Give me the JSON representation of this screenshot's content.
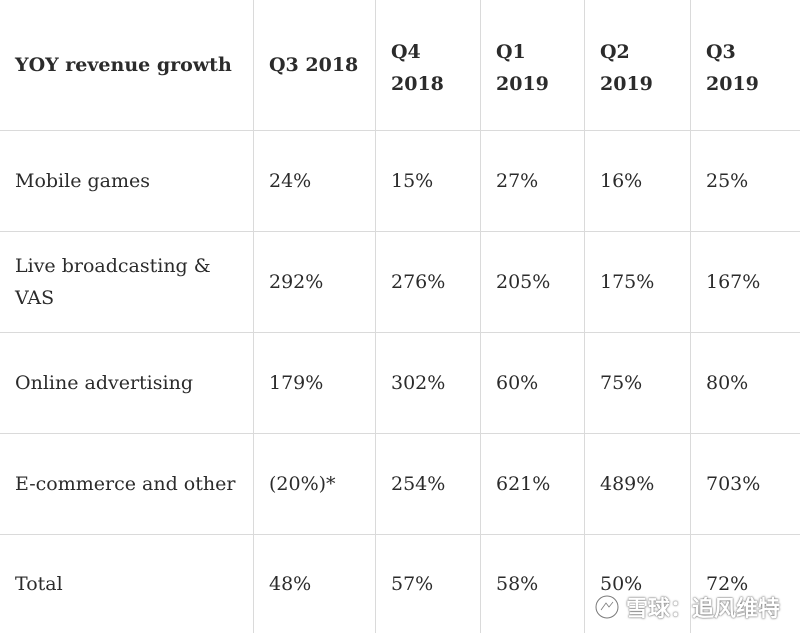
{
  "table": {
    "header": {
      "label": "YOY revenue growth",
      "columns": [
        {
          "line1": "Q3 2018",
          "line2": ""
        },
        {
          "line1": "Q4",
          "line2": "2018"
        },
        {
          "line1": "Q1",
          "line2": "2019"
        },
        {
          "line1": "Q2",
          "line2": "2019"
        },
        {
          "line1": "Q3",
          "line2": "2019"
        }
      ]
    },
    "rows": [
      {
        "label": "Mobile games",
        "values": [
          "24%",
          "15%",
          "27%",
          "16%",
          "25%"
        ]
      },
      {
        "label": "Live broadcasting & VAS",
        "values": [
          "292%",
          "276%",
          "205%",
          "175%",
          "167%"
        ]
      },
      {
        "label": "Online advertising",
        "values": [
          "179%",
          "302%",
          "60%",
          "75%",
          "80%"
        ]
      },
      {
        "label": "E-commerce and other",
        "values": [
          "(20%)*",
          "254%",
          "621%",
          "489%",
          "703%"
        ]
      },
      {
        "label": "Total",
        "values": [
          "48%",
          "57%",
          "58%",
          "50%",
          "72%"
        ]
      }
    ]
  },
  "watermark": {
    "text": "雪球：追风维特",
    "icon": "snowball-logo-icon"
  }
}
